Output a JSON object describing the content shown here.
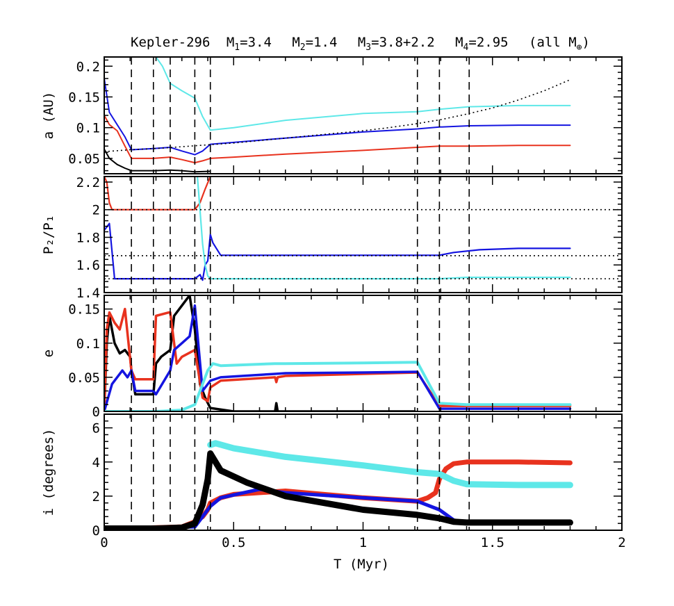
{
  "chart_data": {
    "type": "line",
    "title": {
      "prefix": "Kepler-296",
      "m1_label": "M",
      "m1_sub": "1",
      "m1_val": "=3.4",
      "m2_label": "M",
      "m2_sub": "2",
      "m2_val": "=1.4",
      "m3_label": "M",
      "m3_sub": "3",
      "m3_val": "=3.8+2.2",
      "m4_label": "M",
      "m4_sub": "4",
      "m4_val": "=2.95",
      "units_open": "(all M",
      "units_sub": "⊕",
      "units_close": ")"
    },
    "xlabel": "T (Myr)",
    "xlim": [
      0,
      2
    ],
    "xticks": [
      0,
      0.5,
      1,
      1.5,
      2
    ],
    "xtick_labels": [
      "0",
      "0.5",
      "1",
      "1.5",
      "2"
    ],
    "event_times": [
      0.105,
      0.19,
      0.255,
      0.35,
      0.41,
      1.21,
      1.295,
      1.41
    ],
    "colors": {
      "black": "#000000",
      "red": "#e8321e",
      "blue": "#1414e0",
      "cyan": "#5ee8e8"
    },
    "panels": [
      {
        "id": "a",
        "ylabel": "a (AU)",
        "ylim": [
          0.025,
          0.215
        ],
        "yticks": [
          0.05,
          0.1,
          0.15,
          0.2
        ],
        "ytick_labels": [
          "0.05",
          "0.1",
          "0.15",
          "0.2"
        ],
        "reference": {
          "name": "disk inner edge",
          "x": [
            0,
            0.1,
            0.2,
            0.3,
            0.4,
            0.5,
            0.6,
            0.7,
            0.8,
            0.9,
            1.0,
            1.1,
            1.2,
            1.3,
            1.4,
            1.5,
            1.6,
            1.7,
            1.8
          ],
          "y": [
            0.061,
            0.064,
            0.066,
            0.069,
            0.072,
            0.075,
            0.079,
            0.083,
            0.087,
            0.091,
            0.095,
            0.1,
            0.106,
            0.113,
            0.122,
            0.132,
            0.145,
            0.16,
            0.178
          ]
        },
        "series": [
          {
            "name": "planet-black",
            "color": "black",
            "x": [
              0,
              0.02,
              0.05,
              0.08,
              0.105,
              0.15,
              0.19,
              0.255,
              0.3,
              0.35,
              0.41
            ],
            "y": [
              0.065,
              0.05,
              0.04,
              0.034,
              0.03,
              0.03,
              0.03,
              0.031,
              0.03,
              0.028,
              0.029
            ]
          },
          {
            "name": "planet-red",
            "color": "red",
            "x": [
              0,
              0.02,
              0.05,
              0.08,
              0.105,
              0.19,
              0.255,
              0.3,
              0.35,
              0.38,
              0.41,
              0.5,
              0.7,
              1.0,
              1.21,
              1.295,
              1.41,
              1.6,
              1.8
            ],
            "y": [
              0.12,
              0.105,
              0.095,
              0.07,
              0.05,
              0.05,
              0.052,
              0.048,
              0.043,
              0.046,
              0.05,
              0.052,
              0.057,
              0.063,
              0.068,
              0.07,
              0.07,
              0.071,
              0.071
            ]
          },
          {
            "name": "planet-blue",
            "color": "blue",
            "x": [
              0,
              0.02,
              0.05,
              0.08,
              0.105,
              0.19,
              0.255,
              0.3,
              0.35,
              0.38,
              0.41,
              0.5,
              0.7,
              1.0,
              1.21,
              1.295,
              1.41,
              1.6,
              1.8
            ],
            "y": [
              0.18,
              0.125,
              0.105,
              0.085,
              0.064,
              0.066,
              0.068,
              0.062,
              0.056,
              0.062,
              0.073,
              0.076,
              0.083,
              0.093,
              0.098,
              0.101,
              0.103,
              0.104,
              0.104
            ]
          },
          {
            "name": "planet-cyan",
            "color": "cyan",
            "x": [
              0.2,
              0.225,
              0.255,
              0.3,
              0.35,
              0.38,
              0.41,
              0.5,
              0.7,
              1.0,
              1.21,
              1.295,
              1.41,
              1.6,
              1.8
            ],
            "y": [
              0.215,
              0.2,
              0.172,
              0.16,
              0.148,
              0.118,
              0.096,
              0.1,
              0.112,
              0.123,
              0.126,
              0.13,
              0.134,
              0.136,
              0.136
            ]
          }
        ]
      },
      {
        "id": "p",
        "ylabel": "P₂/P₁",
        "ylim": [
          1.4,
          2.24
        ],
        "yticks": [
          1.4,
          1.6,
          1.8,
          2.0,
          2.2
        ],
        "ytick_labels": [
          "1.4",
          "1.6",
          "1.8",
          "2",
          "2.2"
        ],
        "reference_levels": [
          2.0,
          1.6667,
          1.5
        ],
        "series": [
          {
            "name": "ratio-red",
            "color": "red",
            "x": [
              0,
              0.01,
              0.02,
              0.03,
              0.1,
              0.2,
              0.3,
              0.35,
              0.37,
              0.39,
              0.41
            ],
            "y": [
              2.24,
              2.2,
              2.05,
              2.0,
              2.0,
              2.0,
              2.0,
              2.0,
              2.05,
              2.15,
              2.24
            ]
          },
          {
            "name": "ratio-blue",
            "color": "blue",
            "x": [
              0,
              0.02,
              0.04,
              0.1,
              0.2,
              0.3,
              0.35,
              0.37,
              0.38,
              0.39,
              0.4,
              0.41,
              0.42,
              0.45,
              1.0,
              1.295,
              1.35,
              1.45,
              1.6,
              1.8
            ],
            "y": [
              1.85,
              1.9,
              1.5,
              1.5,
              1.5,
              1.5,
              1.5,
              1.53,
              1.49,
              1.6,
              1.63,
              1.82,
              1.76,
              1.67,
              1.67,
              1.67,
              1.69,
              1.71,
              1.72,
              1.72
            ]
          },
          {
            "name": "ratio-cyan",
            "color": "cyan",
            "x": [
              0.36,
              0.37,
              0.38,
              0.39,
              0.4,
              0.41,
              0.45,
              1.0,
              1.295,
              1.4,
              1.6,
              1.8
            ],
            "y": [
              2.24,
              2.0,
              1.75,
              1.6,
              1.52,
              1.5,
              1.5,
              1.5,
              1.5,
              1.51,
              1.51,
              1.51
            ]
          }
        ]
      },
      {
        "id": "e",
        "ylabel": "e",
        "ylim": [
          0,
          0.17
        ],
        "yticks": [
          0,
          0.05,
          0.1,
          0.15
        ],
        "ytick_labels": [
          "0",
          "0.05",
          "0.1",
          "0.15"
        ],
        "series": [
          {
            "name": "ecc-black",
            "color": "black",
            "x": [
              0,
              0.01,
              0.02,
              0.04,
              0.06,
              0.08,
              0.1,
              0.105,
              0.12,
              0.19,
              0.2,
              0.22,
              0.255,
              0.27,
              0.3,
              0.33,
              0.35,
              0.37,
              0.39,
              0.41,
              0.5,
              0.66,
              0.665,
              0.67,
              0.7,
              1.0,
              1.2
            ],
            "y": [
              0.0,
              0.1,
              0.14,
              0.1,
              0.085,
              0.09,
              0.08,
              0.06,
              0.025,
              0.025,
              0.07,
              0.08,
              0.09,
              0.14,
              0.155,
              0.17,
              0.12,
              0.04,
              0.02,
              0.005,
              0.0,
              0.0,
              0.012,
              0.0,
              0.0,
              0.0,
              0.0
            ]
          },
          {
            "name": "ecc-red",
            "color": "red",
            "x": [
              0,
              0.01,
              0.02,
              0.04,
              0.06,
              0.08,
              0.105,
              0.12,
              0.19,
              0.2,
              0.25,
              0.255,
              0.28,
              0.3,
              0.35,
              0.38,
              0.4,
              0.41,
              0.45,
              0.66,
              0.665,
              0.67,
              0.7,
              1.0,
              1.21,
              1.295,
              1.4,
              1.6,
              1.8
            ],
            "y": [
              0.0,
              0.12,
              0.145,
              0.13,
              0.12,
              0.15,
              0.06,
              0.047,
              0.047,
              0.14,
              0.145,
              0.145,
              0.07,
              0.08,
              0.09,
              0.02,
              0.015,
              0.035,
              0.045,
              0.05,
              0.043,
              0.05,
              0.052,
              0.055,
              0.057,
              0.008,
              0.008,
              0.008,
              0.008
            ]
          },
          {
            "name": "ecc-blue",
            "color": "blue",
            "x": [
              0,
              0.03,
              0.05,
              0.07,
              0.09,
              0.105,
              0.12,
              0.19,
              0.2,
              0.255,
              0.27,
              0.3,
              0.33,
              0.35,
              0.38,
              0.41,
              0.45,
              0.66,
              0.7,
              1.0,
              1.21,
              1.295,
              1.4,
              1.6,
              1.8
            ],
            "y": [
              0.0,
              0.04,
              0.05,
              0.06,
              0.05,
              0.06,
              0.03,
              0.03,
              0.025,
              0.06,
              0.09,
              0.1,
              0.11,
              0.155,
              0.03,
              0.045,
              0.05,
              0.055,
              0.056,
              0.057,
              0.058,
              0.004,
              0.004,
              0.004,
              0.004
            ]
          },
          {
            "name": "ecc-cyan",
            "color": "cyan",
            "x": [
              0,
              0.1,
              0.2,
              0.3,
              0.35,
              0.4,
              0.41,
              0.42,
              0.45,
              0.66,
              0.7,
              1.0,
              1.21,
              1.295,
              1.4,
              1.6,
              1.8
            ],
            "y": [
              0.0,
              0.0,
              0.0,
              0.002,
              0.01,
              0.06,
              0.065,
              0.07,
              0.067,
              0.07,
              0.07,
              0.071,
              0.072,
              0.012,
              0.01,
              0.01,
              0.01
            ]
          }
        ]
      },
      {
        "id": "i",
        "ylabel": "i (degrees)",
        "ylim": [
          0,
          6.8
        ],
        "yticks": [
          0,
          2,
          4,
          6
        ],
        "ytick_labels": [
          "0",
          "2",
          "4",
          "6"
        ],
        "series": [
          {
            "name": "inc-red",
            "color": "red",
            "x": [
              0,
              0.1,
              0.2,
              0.3,
              0.35,
              0.38,
              0.4,
              0.41,
              0.45,
              0.5,
              0.7,
              1.0,
              1.21,
              1.25,
              1.28,
              1.295,
              1.32,
              1.35,
              1.4,
              1.6,
              1.8
            ],
            "y": [
              0.1,
              0.1,
              0.15,
              0.2,
              0.5,
              0.8,
              1.2,
              1.6,
              1.9,
              2.1,
              2.3,
              1.9,
              1.7,
              1.9,
              2.2,
              3.0,
              3.6,
              3.9,
              4.0,
              4.0,
              3.95
            ]
          },
          {
            "name": "inc-blue",
            "color": "blue",
            "x": [
              0,
              0.35,
              0.41,
              0.45,
              0.6,
              0.7,
              1.0,
              1.21,
              1.295,
              1.35,
              1.4,
              1.6,
              1.8
            ],
            "y": [
              0.1,
              0.2,
              1.4,
              1.9,
              2.4,
              2.2,
              1.9,
              1.7,
              1.2,
              0.6,
              0.4,
              0.4,
              0.4
            ]
          },
          {
            "name": "inc-cyan",
            "color": "cyan",
            "x": [
              0.41,
              0.43,
              0.5,
              0.7,
              1.0,
              1.21,
              1.295,
              1.35,
              1.4,
              1.6,
              1.8
            ],
            "y": [
              5.0,
              5.1,
              4.8,
              4.3,
              3.8,
              3.4,
              3.3,
              2.9,
              2.7,
              2.65,
              2.65
            ]
          },
          {
            "name": "inc-black",
            "color": "black",
            "x": [
              0,
              0.1,
              0.2,
              0.3,
              0.35,
              0.38,
              0.4,
              0.41,
              0.45,
              0.55,
              0.7,
              1.0,
              1.21,
              1.295,
              1.35,
              1.4,
              1.6,
              1.8
            ],
            "y": [
              0.1,
              0.1,
              0.1,
              0.15,
              0.4,
              1.5,
              3.0,
              4.5,
              3.5,
              2.8,
              2.0,
              1.2,
              0.9,
              0.7,
              0.5,
              0.45,
              0.45,
              0.45
            ]
          }
        ]
      }
    ]
  }
}
